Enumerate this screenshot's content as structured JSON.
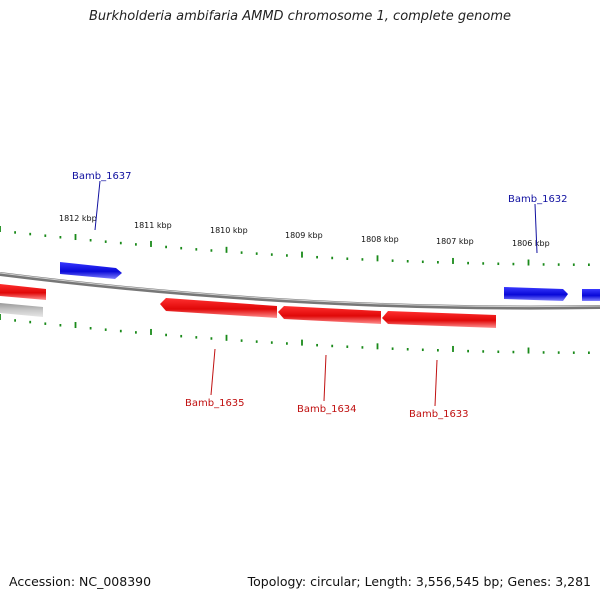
{
  "title": "Burkholderia ambifaria AMMD chromosome 1, complete genome",
  "footer": {
    "accession": "Accession: NC_008390",
    "summary": "Topology: circular; Length: 3,556,545 bp; Genes: 3,281"
  },
  "colors": {
    "forward_gene": "#0a0acc",
    "reverse_gene": "#e01010",
    "backbone": "#888888",
    "tick": "#1a8a1a",
    "forward_label": "#1010a0",
    "reverse_label": "#c01010"
  },
  "scale_ticks": [
    "1812 kbp",
    "1811 kbp",
    "1810 kbp",
    "1809 kbp",
    "1808 kbp",
    "1807 kbp",
    "1806 kbp"
  ],
  "genes": [
    {
      "label": "Bamb_1637",
      "strand": "forward"
    },
    {
      "label": "Bamb_1632",
      "strand": "forward"
    },
    {
      "label": "Bamb_1635",
      "strand": "reverse"
    },
    {
      "label": "Bamb_1634",
      "strand": "reverse"
    },
    {
      "label": "Bamb_1633",
      "strand": "reverse"
    }
  ]
}
